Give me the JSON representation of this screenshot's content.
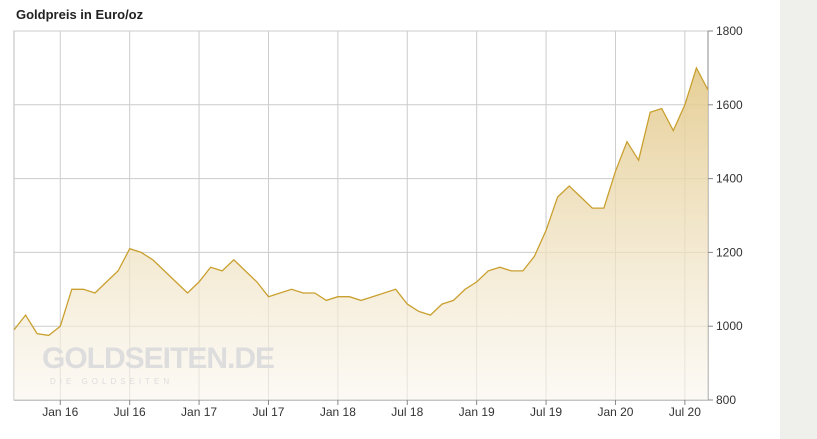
{
  "chart_data": {
    "type": "line",
    "title": "Goldpreis in Euro/oz",
    "watermark": "GOLDSEITEN.DE",
    "watermark_sub": "DIE GOLDSEITEN",
    "categories": [
      null,
      null,
      null,
      null,
      "Jan 16",
      null,
      null,
      null,
      null,
      null,
      "Jul 16",
      null,
      null,
      null,
      null,
      null,
      "Jan 17",
      null,
      null,
      null,
      null,
      null,
      "Jul 17",
      null,
      null,
      null,
      null,
      null,
      "Jan 18",
      null,
      null,
      null,
      null,
      null,
      "Jul 18",
      null,
      null,
      null,
      null,
      null,
      "Jan 19",
      null,
      null,
      null,
      null,
      null,
      "Jul 19",
      null,
      null,
      null,
      null,
      null,
      "Jan 20",
      null,
      null,
      null,
      null,
      null,
      "Jul 20",
      null,
      null
    ],
    "series": [
      {
        "name": "Goldpreis",
        "color": "#c9a030",
        "values": [
          990,
          1030,
          980,
          975,
          1000,
          1100,
          1100,
          1090,
          1120,
          1150,
          1210,
          1200,
          1180,
          1150,
          1120,
          1090,
          1120,
          1160,
          1150,
          1180,
          1150,
          1120,
          1080,
          1090,
          1100,
          1090,
          1090,
          1070,
          1080,
          1080,
          1070,
          1080,
          1090,
          1100,
          1060,
          1040,
          1030,
          1060,
          1070,
          1100,
          1120,
          1150,
          1160,
          1150,
          1150,
          1190,
          1260,
          1350,
          1380,
          1350,
          1320,
          1320,
          1420,
          1500,
          1450,
          1580,
          1590,
          1530,
          1600,
          1700,
          1640
        ]
      }
    ],
    "ylim": [
      800,
      1800
    ],
    "yticks": [
      800,
      1000,
      1200,
      1400,
      1600,
      1800
    ],
    "grid": true
  }
}
